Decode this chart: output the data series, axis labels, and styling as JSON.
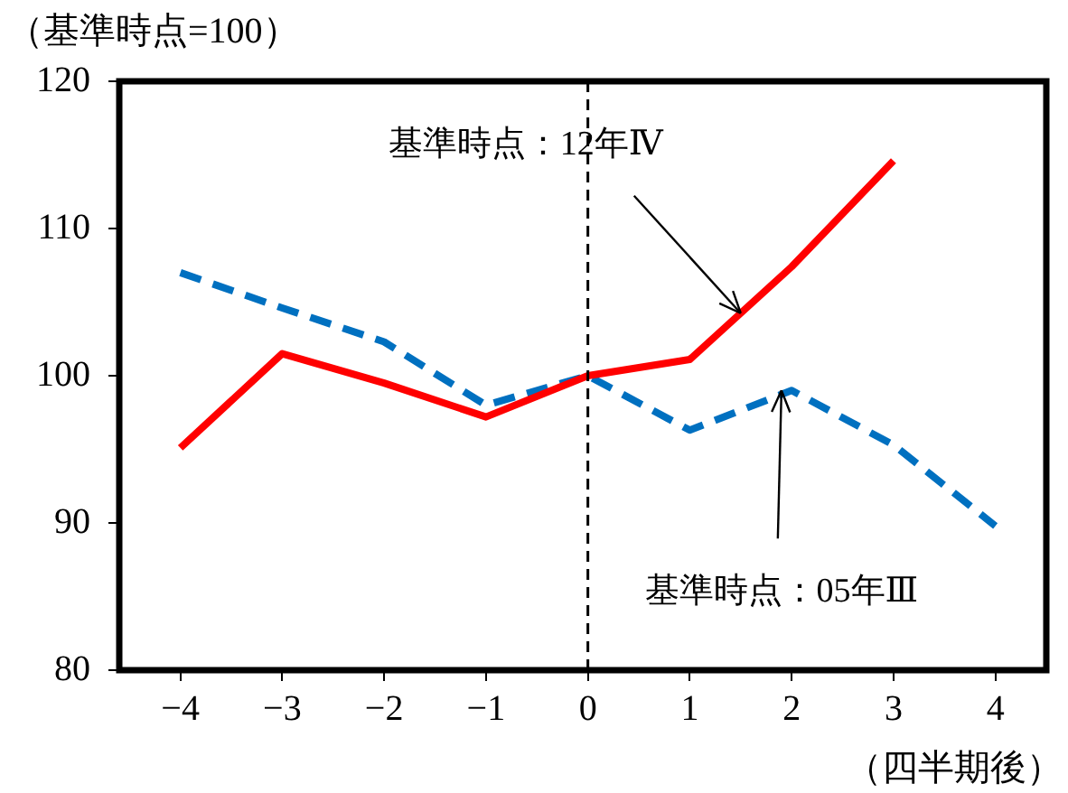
{
  "chart_data": {
    "type": "line",
    "ylabel": "（基準時点=100）",
    "xlabel": "（四半期後）",
    "x": [
      -4,
      -3,
      -2,
      -1,
      0,
      1,
      2,
      3,
      4
    ],
    "series": [
      {
        "color": "#ff0000",
        "line_style": "solid",
        "values": [
          95.1,
          101.5,
          99.5,
          97.2,
          100,
          101.1,
          107.4,
          114.6,
          null
        ]
      },
      {
        "color": "#0070c0",
        "line_style": "dashed",
        "values": [
          107,
          104.6,
          102.3,
          98,
          100,
          96.3,
          99,
          95.3,
          89.8
        ]
      }
    ],
    "xlim": [
      -4.6,
      4.5
    ],
    "xticks": [
      -4,
      -3,
      -2,
      -1,
      0,
      1,
      2,
      3,
      4
    ],
    "ylim": [
      80,
      120
    ],
    "yticks": [
      80,
      90,
      100,
      110,
      120
    ],
    "grid": false,
    "legend": false,
    "marker": "none",
    "ref_lines": [
      {
        "axis": "x",
        "value": 0,
        "color": "#000000",
        "line_style": "dashed"
      }
    ],
    "annotations": [
      {
        "text": "基準時点：12年Ⅳ",
        "x": 1.5,
        "y": 104.25
      },
      {
        "text": "基準時点：05年Ⅲ",
        "x": 1.9,
        "y": 99
      }
    ]
  }
}
